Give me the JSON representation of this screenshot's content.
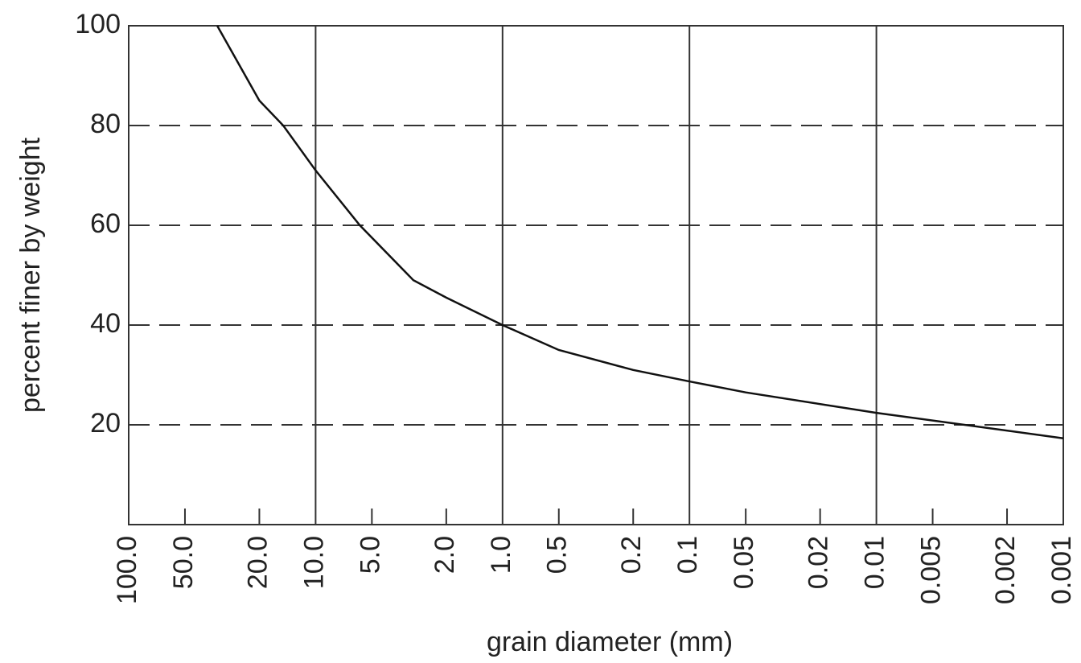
{
  "chart_data": {
    "type": "line",
    "xlabel": "grain diameter (mm)",
    "ylabel": "percent finer by weight",
    "x": [
      33.6,
      20,
      14.9,
      10,
      5.8,
      3,
      2,
      1,
      0.5,
      0.2,
      0.1,
      0.05,
      0.01,
      0.001
    ],
    "series": [
      {
        "color": "#111111",
        "values": [
          100,
          85,
          80,
          71,
          60,
          49,
          45.5,
          40,
          35,
          31,
          28.7,
          26.5,
          22.4,
          17.3
        ]
      }
    ],
    "xscale": "log",
    "xreversed": true,
    "xlim": [
      100,
      0.001
    ],
    "xticks": [
      {
        "value": 100,
        "label": "100.0"
      },
      {
        "value": 50,
        "label": "50.0"
      },
      {
        "value": 20,
        "label": "20.0"
      },
      {
        "value": 10,
        "label": "10.0"
      },
      {
        "value": 5,
        "label": "5.0"
      },
      {
        "value": 2,
        "label": "2.0"
      },
      {
        "value": 1,
        "label": "1.0"
      },
      0.5,
      0.2,
      0.1,
      0.05,
      0.02,
      0.01,
      0.005,
      0.002,
      0.001
    ],
    "ylim": [
      0,
      100
    ],
    "yticks": [
      20,
      40,
      60,
      80,
      100
    ],
    "grid": true
  }
}
